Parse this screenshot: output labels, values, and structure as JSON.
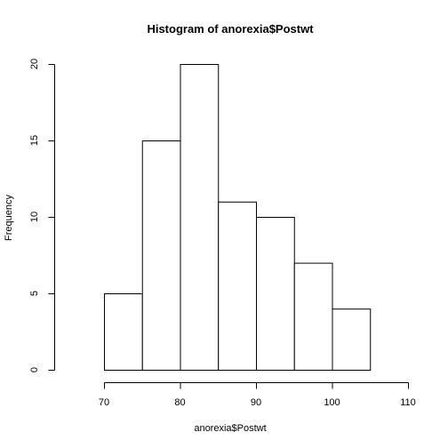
{
  "chart_data": {
    "type": "bar",
    "title": "Histogram of anorexia$Postwt",
    "xlabel": "anorexia$Postwt",
    "ylabel": "Frequency",
    "bins": [
      {
        "from": 70,
        "to": 75,
        "count": 5
      },
      {
        "from": 75,
        "to": 80,
        "count": 15
      },
      {
        "from": 80,
        "to": 85,
        "count": 20
      },
      {
        "from": 85,
        "to": 90,
        "count": 11
      },
      {
        "from": 90,
        "to": 95,
        "count": 10
      },
      {
        "from": 95,
        "to": 100,
        "count": 7
      },
      {
        "from": 100,
        "to": 105,
        "count": 4
      }
    ],
    "xlim": [
      70,
      110
    ],
    "ylim": [
      0,
      20
    ],
    "x_ticks": [
      70,
      80,
      90,
      100,
      110
    ],
    "y_ticks": [
      0,
      5,
      10,
      15,
      20
    ],
    "grid": false,
    "colors": {
      "bar_fill": "#ffffff",
      "bar_stroke": "#000000"
    }
  }
}
